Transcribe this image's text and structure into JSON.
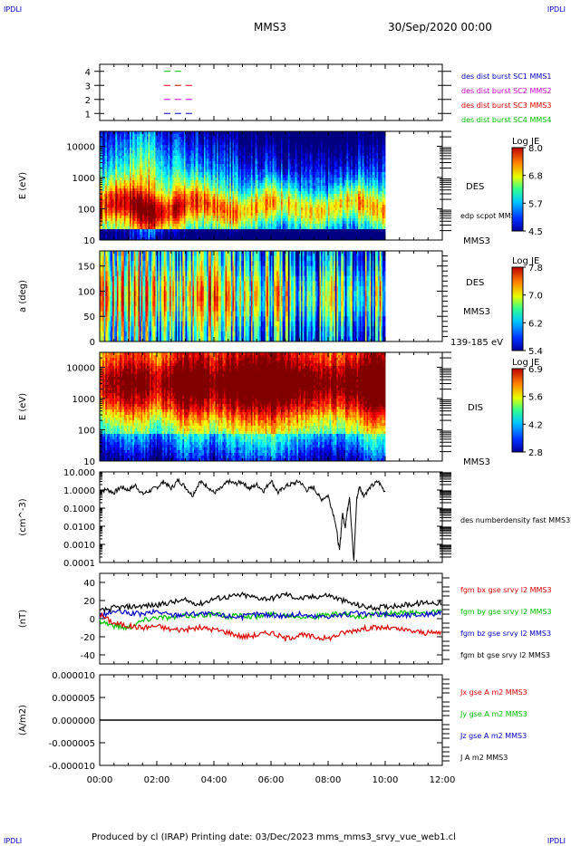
{
  "header": {
    "corner_tl": "IPDLI",
    "corner_tr": "IPDLI",
    "spacecraft": "MMS3",
    "date": "30/Sep/2020 00:00",
    "corner_bl": "IPDLI",
    "corner_br": "IPDLI"
  },
  "footer": {
    "text": "Produced by cl (IRAP)   Printing date: 03/Dec/2023   mms_mms3_srvy_vue_web1.cl"
  },
  "colors": {
    "blue": "#0000c8",
    "magenta": "#d000d0",
    "red": "#e00000",
    "green": "#00c000",
    "black": "#000000"
  },
  "chart_data": [
    {
      "type": "line",
      "panel": "burst-indicator",
      "yticks": [
        "4",
        "3",
        "2",
        "1"
      ],
      "ylim": [
        0.5,
        4.5
      ],
      "series": [
        {
          "name": "des dist burst SC1 MMS1",
          "color": "#0000c8",
          "level": 1,
          "x": [
            2.25,
            3.25
          ]
        },
        {
          "name": "des dist burst SC2 MMS2",
          "color": "#d000d0",
          "level": 2,
          "x": [
            2.25,
            3.25
          ]
        },
        {
          "name": "des dist burst SC3 MMS3",
          "color": "#e00000",
          "level": 3,
          "x": [
            2.25,
            3.25
          ]
        },
        {
          "name": "des dist burst SC4 MMS4",
          "color": "#00c000",
          "level": 4,
          "x": [
            2.25,
            2.9
          ]
        }
      ]
    },
    {
      "type": "heatmap",
      "panel": "des-energy",
      "ylabel": "E (eV)",
      "yscale": "log",
      "yticks": [
        "10000",
        "1000",
        "100",
        "10"
      ],
      "ylim": [
        10,
        30000
      ],
      "label": "DES",
      "sublabel": "edp scpot MMS3",
      "spacecraft_label": "MMS3",
      "colorbar": {
        "title": "Log JE",
        "ticks": [
          "8.0",
          "6.8",
          "5.7",
          "4.5"
        ],
        "range": [
          4.5,
          8.0
        ]
      },
      "profile": [
        [
          0,
          5.8
        ],
        [
          0.5,
          6.2
        ],
        [
          1,
          6.4
        ],
        [
          1.6,
          6.9
        ],
        [
          2.1,
          6.1
        ],
        [
          3,
          5.9
        ],
        [
          4,
          5.6
        ],
        [
          5,
          5.5
        ],
        [
          6,
          5.4
        ],
        [
          7,
          5.1
        ],
        [
          8,
          5.0
        ],
        [
          9,
          5.3
        ],
        [
          10,
          5.4
        ]
      ]
    },
    {
      "type": "heatmap",
      "panel": "des-pitch-angle",
      "ylabel": "a (deg)",
      "yticks": [
        "150",
        "100",
        "50",
        "0"
      ],
      "ylim": [
        0,
        180
      ],
      "label": "DES",
      "spacecraft_label": "MMS3",
      "energy_label": "139-185 eV",
      "colorbar": {
        "title": "Log JE",
        "ticks": [
          "7.8",
          "7.0",
          "6.2",
          "5.4"
        ],
        "range": [
          5.4,
          7.8
        ]
      },
      "profile": [
        [
          0,
          6.5
        ],
        [
          1,
          6.9
        ],
        [
          2,
          6.6
        ],
        [
          3,
          6.3
        ],
        [
          4,
          6.8
        ],
        [
          5,
          6.4
        ],
        [
          6,
          6.5
        ],
        [
          7,
          6.0
        ],
        [
          8,
          6.1
        ],
        [
          9,
          6.2
        ],
        [
          10,
          6.4
        ]
      ]
    },
    {
      "type": "heatmap",
      "panel": "dis-energy",
      "ylabel": "E (eV)",
      "yscale": "log",
      "yticks": [
        "10000",
        "1000",
        "100",
        "10"
      ],
      "ylim": [
        10,
        30000
      ],
      "label": "DIS",
      "spacecraft_label": "MMS3",
      "colorbar": {
        "title": "Log JE",
        "ticks": [
          "6.9",
          "5.6",
          "4.2",
          "2.8"
        ],
        "range": [
          2.8,
          6.9
        ]
      },
      "profile": [
        [
          0,
          5.4
        ],
        [
          1,
          6.2
        ],
        [
          2,
          5.5
        ],
        [
          3,
          6.4
        ],
        [
          4,
          5.9
        ],
        [
          5,
          6.5
        ],
        [
          6,
          6.6
        ],
        [
          7,
          6.2
        ],
        [
          8,
          5.8
        ],
        [
          9,
          6.0
        ],
        [
          9.6,
          6.7
        ],
        [
          10,
          6.3
        ]
      ]
    },
    {
      "type": "line",
      "panel": "density",
      "ylabel": "(cm^-3)",
      "yscale": "log",
      "yticks": [
        "10.000",
        "1.0000",
        "0.1000",
        "0.0100",
        "0.0010",
        "0.0001"
      ],
      "ylim": [
        0.0001,
        10
      ],
      "series": [
        {
          "name": "des numberdensity fast MMS3",
          "color": "#000000",
          "x": [
            0,
            0.25,
            0.5,
            0.75,
            1,
            1.25,
            1.5,
            1.75,
            2,
            2.25,
            2.5,
            2.75,
            3,
            3.25,
            3.5,
            3.75,
            4,
            4.25,
            4.5,
            4.75,
            5,
            5.25,
            5.5,
            5.75,
            6,
            6.25,
            6.5,
            6.75,
            7,
            7.25,
            7.5,
            7.75,
            8,
            8.25,
            8.4,
            8.5,
            8.6,
            8.75,
            8.9,
            9.0,
            9.1,
            9.25,
            9.5,
            9.75,
            10
          ],
          "values": [
            0.8,
            1.1,
            0.7,
            1.5,
            1.0,
            1.8,
            0.6,
            0.9,
            1.4,
            3.0,
            1.2,
            3.5,
            1.5,
            0.5,
            2.8,
            1.8,
            0.7,
            1.2,
            3.0,
            2.2,
            2.8,
            1.2,
            2.0,
            0.9,
            3.5,
            0.7,
            1.6,
            2.2,
            3.0,
            1.0,
            1.4,
            0.3,
            0.5,
            0.02,
            0.0004,
            0.05,
            0.01,
            0.5,
            0.0001,
            0.3,
            1.6,
            0.5,
            1.5,
            3.0,
            0.8
          ]
        }
      ]
    },
    {
      "type": "line",
      "panel": "magnetic-field",
      "ylabel": "(nT)",
      "yticks": [
        "40",
        "20",
        "0",
        "-20",
        "-40"
      ],
      "ylim": [
        -50,
        50
      ],
      "x": [
        0,
        0.5,
        1,
        1.5,
        2,
        2.5,
        3,
        3.5,
        4,
        4.5,
        5,
        5.5,
        6,
        6.5,
        7,
        7.5,
        8,
        8.5,
        9,
        9.5,
        10,
        10.5,
        11,
        11.5,
        12
      ],
      "series": [
        {
          "name": "fgm bx gse srvy l2 MMS3",
          "color": "#e00000",
          "values": [
            5,
            -5,
            -8,
            -10,
            -8,
            -12,
            -12,
            -10,
            -12,
            -15,
            -20,
            -18,
            -15,
            -22,
            -18,
            -20,
            -22,
            -16,
            -12,
            -10,
            -10,
            -12,
            -14,
            -16,
            -15
          ]
        },
        {
          "name": "fgm by gse srvy l2 MMS3",
          "color": "#00c000",
          "values": [
            -2,
            -8,
            -10,
            -2,
            2,
            1,
            3,
            4,
            5,
            2,
            4,
            2,
            5,
            4,
            3,
            2,
            4,
            5,
            2,
            4,
            5,
            6,
            6,
            7,
            8
          ]
        },
        {
          "name": "fgm bz gse srvy l2 MMS3",
          "color": "#0000c8",
          "values": [
            3,
            8,
            6,
            5,
            8,
            4,
            5,
            6,
            4,
            3,
            2,
            5,
            4,
            3,
            5,
            2,
            3,
            4,
            6,
            4,
            5,
            3,
            4,
            5,
            6
          ]
        },
        {
          "name": "fgm bt gse srvy l2 MMS3",
          "color": "#000000",
          "values": [
            8,
            12,
            13,
            14,
            15,
            18,
            20,
            16,
            22,
            24,
            26,
            23,
            22,
            27,
            22,
            24,
            26,
            20,
            15,
            12,
            13,
            15,
            16,
            18,
            17
          ]
        }
      ]
    },
    {
      "type": "line",
      "panel": "current-density",
      "ylabel": "(A/m2)",
      "yticks": [
        "0.000010",
        "0.000005",
        "0.000000",
        "-0.000005",
        "-0.000010"
      ],
      "ylim": [
        -1e-05,
        1e-05
      ],
      "series": [
        {
          "name": "Jx gse A m2 MMS3",
          "color": "#e00000"
        },
        {
          "name": "Jy gse A m2 MMS3",
          "color": "#00c000"
        },
        {
          "name": "Jz gse A m2 MMS3",
          "color": "#0000c8"
        },
        {
          "name": "J A m2 MMS3",
          "color": "#000000",
          "x": [
            0,
            12
          ],
          "values": [
            0,
            0
          ]
        }
      ]
    }
  ],
  "xaxis": {
    "ticks": [
      "00:00",
      "02:00",
      "04:00",
      "06:00",
      "08:00",
      "10:00",
      "12:00"
    ],
    "range_hours": [
      0,
      12
    ]
  }
}
